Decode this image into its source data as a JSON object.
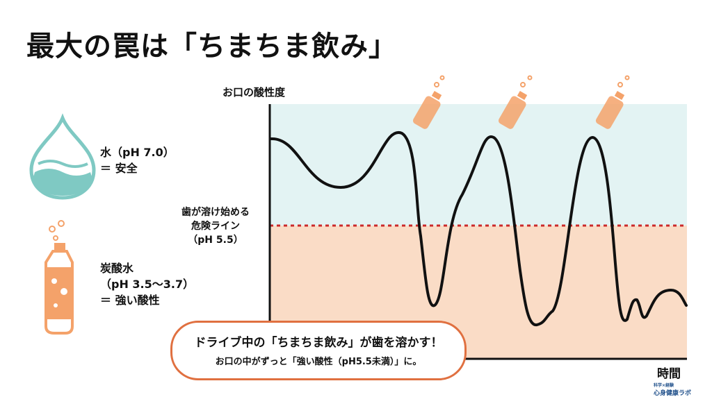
{
  "title": "最大の罠は「ちまちま飲み」",
  "legend": {
    "water": {
      "line1": "水（pH 7.0）",
      "line2": "＝ 安全"
    },
    "soda": {
      "line1": "炭酸水",
      "line2": "（pH 3.5〜3.7）",
      "line3": "＝ 強い酸性"
    }
  },
  "chart": {
    "ylabel": "お口の酸性度",
    "xlabel": "時間",
    "danger_line": {
      "line1": "歯が溶け始める",
      "line2": "危険ライン",
      "line3": "（pH 5.5）"
    },
    "colors": {
      "safe": "#e3f3f3",
      "acid": "#fadcc6",
      "line": "#cc2a2a",
      "bottle": "#f4a26a"
    }
  },
  "callout": {
    "line1": "ドライブ中の「ちまちま飲み」が歯を溶かす！",
    "line2": "お口の中がずっと「強い酸性（pH5.5未満）」に。"
  },
  "logo": {
    "sub": "科学×経験",
    "name": "心身健康ラボ"
  }
}
